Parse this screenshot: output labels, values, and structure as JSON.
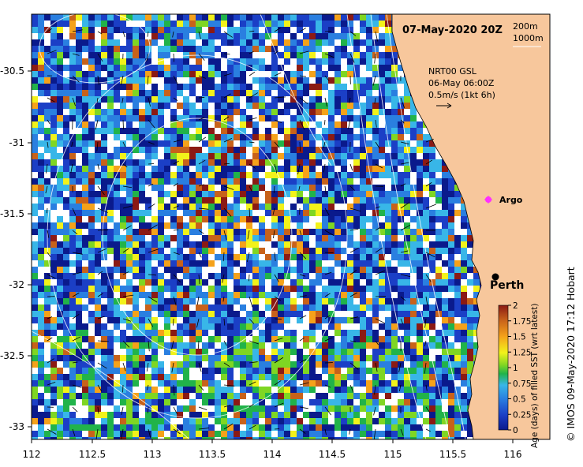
{
  "map": {
    "date_label": "07-May-2020 20Z",
    "isobath_labels": [
      "200m",
      "1000m"
    ],
    "current_info": [
      "NRT00 GSL",
      "06-May 06:00Z",
      "0.5m/s (1kt 6h)"
    ],
    "places": {
      "argo": "Argo",
      "perth": "Perth"
    },
    "credit": "© IMOS 09-May-2020 17:12 Hobart",
    "x_ticks": [
      "112",
      "112.5",
      "113",
      "113.5",
      "114",
      "114.5",
      "115",
      "115.5",
      "116"
    ],
    "y_ticks": [
      "-30.5",
      "-31",
      "-31.5",
      "-32",
      "-32.5",
      "-33"
    ],
    "colorbar": {
      "title": "Age (days) of filled SST (wrt latest)",
      "ticks": [
        "2",
        "1.75",
        "1.5",
        "1.25",
        "1",
        "0.75",
        "0.5",
        "0.25",
        "0"
      ]
    },
    "colors": {
      "land": "#f7c79c",
      "no_data": "#ffffff",
      "ramp": [
        "#0a1a8c",
        "#1b3fc6",
        "#2a7fe0",
        "#38b6e8",
        "#21b34a",
        "#7fd623",
        "#f2f21a",
        "#f5a21a",
        "#c8621a",
        "#8b1a14"
      ]
    }
  }
}
